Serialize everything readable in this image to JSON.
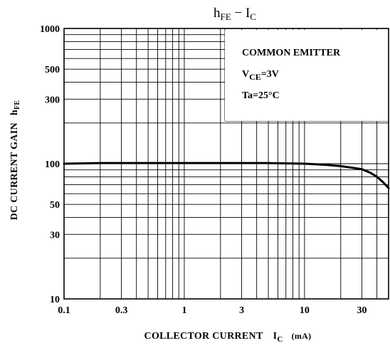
{
  "chart_data": {
    "type": "line",
    "title": {
      "main": "h",
      "main_sub": "FE",
      "sep": " − ",
      "second": "I",
      "second_sub": "C"
    },
    "xlabel": {
      "text": "COLLECTOR CURRENT",
      "sym": "I",
      "sub": "C",
      "unit": "(mA)"
    },
    "ylabel": {
      "text": "DC CURRENT GAIN",
      "sym": "h",
      "sub": "FE"
    },
    "x_scale": "log",
    "y_scale": "log",
    "xlim": [
      0.1,
      50
    ],
    "ylim": [
      10,
      1000
    ],
    "x_ticks": [
      {
        "v": 0.1,
        "label": "0.1"
      },
      {
        "v": 0.3,
        "label": "0.3"
      },
      {
        "v": 1,
        "label": "1"
      },
      {
        "v": 3,
        "label": "3"
      },
      {
        "v": 10,
        "label": "10"
      },
      {
        "v": 30,
        "label": "30"
      }
    ],
    "y_ticks": [
      {
        "v": 10,
        "label": "10"
      },
      {
        "v": 30,
        "label": "30"
      },
      {
        "v": 50,
        "label": "50"
      },
      {
        "v": 100,
        "label": "100"
      },
      {
        "v": 300,
        "label": "300"
      },
      {
        "v": 500,
        "label": "500"
      },
      {
        "v": 1000,
        "label": "1000"
      }
    ],
    "grid": true,
    "annotations": [
      {
        "text": "COMMON EMITTER"
      },
      {
        "text": "V",
        "sub": "CE",
        "rest": "=3V"
      },
      {
        "text": "Ta=25°C"
      }
    ],
    "series": [
      {
        "x": [
          0.1,
          0.2,
          0.5,
          1,
          2,
          5,
          10,
          15,
          20,
          30,
          35,
          40,
          45,
          50
        ],
        "y": [
          100,
          101,
          101,
          101,
          101,
          101,
          100,
          98,
          96,
          91,
          86,
          80,
          73,
          66
        ]
      }
    ]
  },
  "colors": {
    "line": "#000000",
    "grid": "#000000",
    "background": "#ffffff"
  }
}
